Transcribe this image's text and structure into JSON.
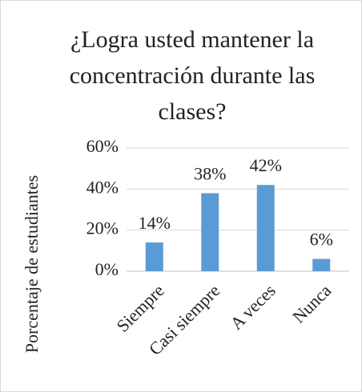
{
  "chart_data": {
    "type": "bar",
    "title": "¿Logra usted mantener la concentración durante las clases?",
    "ylabel": "Porcentaje de estudiantes",
    "categories": [
      "Siempre",
      "Casi siempre",
      "A veces",
      "Nunca"
    ],
    "values": [
      14,
      38,
      42,
      6
    ],
    "value_labels": [
      "14%",
      "38%",
      "42%",
      "6%"
    ],
    "color": "#5b9bd5",
    "ylim": [
      0,
      60
    ],
    "yticks": [
      {
        "value": 0,
        "label": "0%"
      },
      {
        "value": 20,
        "label": "20%"
      },
      {
        "value": 40,
        "label": "40%"
      },
      {
        "value": 60,
        "label": "60%"
      }
    ],
    "grid": true
  }
}
